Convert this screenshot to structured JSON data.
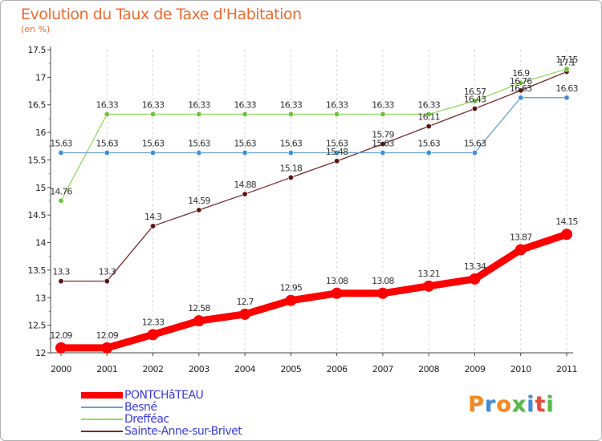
{
  "title": "Evolution du Taux de Taxe d'Habitation",
  "unit_label": "(en %)",
  "logo_text": "Proxiti",
  "logo_colors": [
    "#f28a1e",
    "#3c8fd6",
    "#f28a1e",
    "#56b847",
    "#3c8fd6",
    "#e84b3c",
    "#56b847"
  ],
  "chart_data": {
    "type": "line",
    "title": "Evolution du Taux de Taxe d'Habitation",
    "ylabel": "(en %)",
    "xlabel": "",
    "x": [
      "2000",
      "2001",
      "2002",
      "2003",
      "2004",
      "2005",
      "2006",
      "2007",
      "2008",
      "2009",
      "2010",
      "2011"
    ],
    "ylim": [
      12,
      17.5
    ],
    "yticks": [
      "12",
      "12.5",
      "13",
      "13.5",
      "14",
      "14.5",
      "15",
      "15.5",
      "16",
      "16.5",
      "17",
      "17.5"
    ],
    "grid": "vertical",
    "legend_position": "bottom-left",
    "series": [
      {
        "name": "PONTCHâTEAU",
        "color": "#ff0000",
        "marker_color": "#ff0000",
        "values": [
          12.09,
          12.09,
          12.33,
          12.58,
          12.7,
          12.95,
          13.08,
          13.08,
          13.21,
          13.34,
          13.87,
          14.15
        ],
        "labels": [
          "12.09",
          "12.09",
          "12.33",
          "12.58",
          "12.7",
          "12.95",
          "13.08",
          "13.08",
          "13.21",
          "13.34",
          "13.87",
          "14.15"
        ]
      },
      {
        "name": "Besné",
        "color": "#6e9fc9",
        "marker_color": "#3d8ed6",
        "values": [
          15.63,
          15.63,
          15.63,
          15.63,
          15.63,
          15.63,
          15.63,
          15.63,
          15.63,
          15.63,
          16.63,
          16.63
        ],
        "labels": [
          "15.63",
          "15.63",
          "15.63",
          "15.63",
          "15.63",
          "15.63",
          "15.63",
          "15.63",
          "15.63",
          "15.63",
          "16.63",
          "16.63"
        ]
      },
      {
        "name": "Drefféac",
        "color": "#8fdc5a",
        "marker_color": "#6cc23a",
        "values": [
          14.76,
          16.33,
          16.33,
          16.33,
          16.33,
          16.33,
          16.33,
          16.33,
          16.33,
          16.57,
          16.9,
          17.15
        ],
        "labels": [
          "14.76",
          "16.33",
          "16.33",
          "16.33",
          "16.33",
          "16.33",
          "16.33",
          "16.33",
          "16.33",
          "16.57",
          "16.9",
          "17.15"
        ]
      },
      {
        "name": "Sainte-Anne-sur-Brivet",
        "color": "#7a2a2a",
        "marker_color": "#5a1414",
        "values": [
          13.3,
          13.3,
          14.3,
          14.59,
          14.88,
          15.18,
          15.48,
          15.79,
          16.11,
          16.43,
          16.76,
          17.1
        ],
        "labels": [
          "13.3",
          "13.3",
          "14.3",
          "14.59",
          "14.88",
          "15.18",
          "15.48",
          "15.79",
          "16.11",
          "16.43",
          "16.76",
          "17.1"
        ]
      }
    ]
  }
}
